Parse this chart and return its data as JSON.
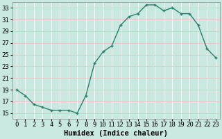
{
  "x": [
    0,
    1,
    2,
    3,
    4,
    5,
    6,
    7,
    8,
    9,
    10,
    11,
    12,
    13,
    14,
    15,
    16,
    17,
    18,
    19,
    20,
    21,
    22,
    23
  ],
  "y": [
    19,
    18,
    16.5,
    16,
    15.5,
    15.5,
    15.5,
    15,
    18,
    23.5,
    25.5,
    26.5,
    30,
    31.5,
    32,
    33.5,
    33.5,
    32.5,
    33,
    32,
    32,
    30,
    26,
    24.5
  ],
  "line_color": "#2e7d6e",
  "marker": "+",
  "bg_color": "#c8e8e0",
  "grid_major_color": "#e8c8c8",
  "grid_minor_color": "#ffffff",
  "xlabel": "Humidex (Indice chaleur)",
  "ylim": [
    14,
    34
  ],
  "yticks": [
    15,
    17,
    19,
    21,
    23,
    25,
    27,
    29,
    31,
    33
  ],
  "xticks": [
    0,
    1,
    2,
    3,
    4,
    5,
    6,
    7,
    8,
    9,
    10,
    11,
    12,
    13,
    14,
    15,
    16,
    17,
    18,
    19,
    20,
    21,
    22,
    23
  ],
  "tick_fontsize": 6.5,
  "xlabel_fontsize": 7.5,
  "linewidth": 1.0,
  "markersize": 3.5,
  "markeredgewidth": 1.0
}
